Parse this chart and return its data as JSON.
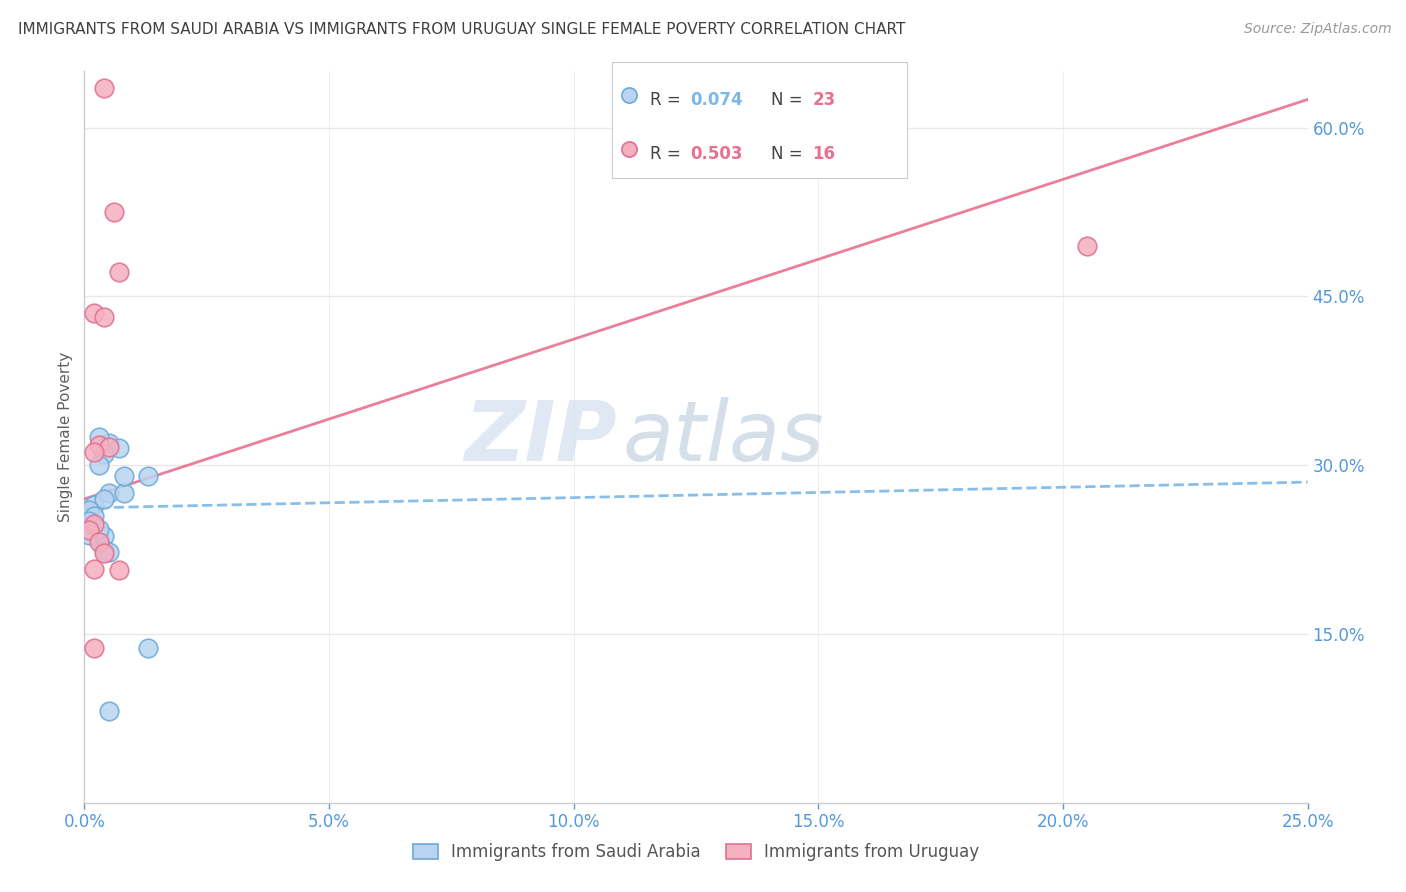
{
  "title": "IMMIGRANTS FROM SAUDI ARABIA VS IMMIGRANTS FROM URUGUAY SINGLE FEMALE POVERTY CORRELATION CHART",
  "source": "Source: ZipAtlas.com",
  "ylabel": "Single Female Poverty",
  "legend_label_blue": "Immigrants from Saudi Arabia",
  "legend_label_pink": "Immigrants from Uruguay",
  "r_blue": 0.074,
  "n_blue": 23,
  "r_pink": 0.503,
  "n_pink": 16,
  "xlim": [
    0.0,
    0.25
  ],
  "ylim": [
    0.0,
    0.65
  ],
  "xticks": [
    0.0,
    0.05,
    0.1,
    0.15,
    0.2,
    0.25
  ],
  "yticks": [
    0.15,
    0.3,
    0.45,
    0.6
  ],
  "xticklabels": [
    "0.0%",
    "5.0%",
    "10.0%",
    "15.0%",
    "20.0%",
    "25.0%"
  ],
  "yticklabels_right": [
    "15.0%",
    "30.0%",
    "45.0%",
    "60.0%"
  ],
  "blue_dots": [
    [
      0.005,
      0.275
    ],
    [
      0.008,
      0.275
    ],
    [
      0.005,
      0.32
    ],
    [
      0.007,
      0.315
    ],
    [
      0.003,
      0.325
    ],
    [
      0.004,
      0.31
    ],
    [
      0.003,
      0.3
    ],
    [
      0.002,
      0.265
    ],
    [
      0.004,
      0.27
    ],
    [
      0.001,
      0.26
    ],
    [
      0.002,
      0.255
    ],
    [
      0.001,
      0.25
    ],
    [
      0.002,
      0.245
    ],
    [
      0.003,
      0.235
    ],
    [
      0.001,
      0.238
    ],
    [
      0.004,
      0.237
    ],
    [
      0.003,
      0.243
    ],
    [
      0.008,
      0.29
    ],
    [
      0.004,
      0.225
    ],
    [
      0.005,
      0.223
    ],
    [
      0.013,
      0.29
    ],
    [
      0.013,
      0.138
    ],
    [
      0.005,
      0.082
    ]
  ],
  "pink_dots": [
    [
      0.004,
      0.635
    ],
    [
      0.006,
      0.525
    ],
    [
      0.007,
      0.472
    ],
    [
      0.002,
      0.435
    ],
    [
      0.004,
      0.432
    ],
    [
      0.003,
      0.318
    ],
    [
      0.005,
      0.316
    ],
    [
      0.002,
      0.312
    ],
    [
      0.002,
      0.248
    ],
    [
      0.001,
      0.242
    ],
    [
      0.003,
      0.232
    ],
    [
      0.004,
      0.222
    ],
    [
      0.002,
      0.208
    ],
    [
      0.007,
      0.207
    ],
    [
      0.002,
      0.138
    ],
    [
      0.205,
      0.495
    ]
  ],
  "blue_line_x": [
    0.0,
    0.25
  ],
  "blue_line_y": [
    0.262,
    0.285
  ],
  "pink_line_x": [
    0.0,
    0.25
  ],
  "pink_line_y": [
    0.27,
    0.625
  ],
  "watermark_zip": "ZIP",
  "watermark_atlas": "atlas",
  "color_blue_fill": "#b8d4f0",
  "color_pink_fill": "#f5b0c0",
  "color_blue_edge": "#6aaad8",
  "color_pink_edge": "#e07090",
  "color_blue_line": "#7ab8e8",
  "color_pink_line": "#e87090",
  "background_color": "#ffffff",
  "grid_color": "#e8e8e8",
  "title_color": "#404040",
  "axis_tick_color": "#5599dd",
  "ylabel_color": "#606060"
}
